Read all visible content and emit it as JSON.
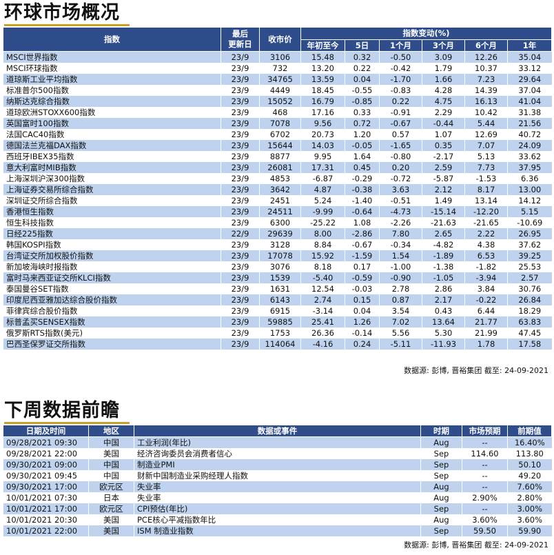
{
  "section1": {
    "title": "环球市场概况",
    "headers": {
      "index": "指数",
      "last_update": "最后\n更新日",
      "close": "收市价",
      "change_group": "指数变动(%)",
      "ytd": "年初至今",
      "d5": "5日",
      "m1": "1个月",
      "m3": "3个月",
      "m6": "6个月",
      "y1": "1年"
    },
    "rows": [
      {
        "name": "MSCI世界指数",
        "date": "23/9",
        "close": "3106",
        "ytd": "15.48",
        "d5": "0.32",
        "m1": "-0.50",
        "m3": "3.09",
        "m6": "12.26",
        "y1": "35.04"
      },
      {
        "name": "MSCI环球指数",
        "date": "23/9",
        "close": "732",
        "ytd": "13.20",
        "d5": "0.22",
        "m1": "-0.42",
        "m3": "1.79",
        "m6": "10.37",
        "y1": "33.12"
      },
      {
        "name": "道琼斯工业平均指数",
        "date": "23/9",
        "close": "34765",
        "ytd": "13.59",
        "d5": "0.04",
        "m1": "-1.70",
        "m3": "1.66",
        "m6": "7.23",
        "y1": "29.64"
      },
      {
        "name": "标准普尔500指数",
        "date": "23/9",
        "close": "4449",
        "ytd": "18.45",
        "d5": "-0.55",
        "m1": "-0.83",
        "m3": "4.28",
        "m6": "14.39",
        "y1": "37.04"
      },
      {
        "name": "纳斯达克综合指数",
        "date": "23/9",
        "close": "15052",
        "ytd": "16.79",
        "d5": "-0.85",
        "m1": "0.22",
        "m3": "4.75",
        "m6": "16.13",
        "y1": "41.04"
      },
      {
        "name": "道琼欧洲STOXX600指数",
        "date": "23/9",
        "close": "468",
        "ytd": "17.16",
        "d5": "0.33",
        "m1": "-0.91",
        "m3": "2.29",
        "m6": "10.42",
        "y1": "31.38"
      },
      {
        "name": "英国富时100指数",
        "date": "23/9",
        "close": "7078",
        "ytd": "9.56",
        "d5": "0.72",
        "m1": "-0.67",
        "m3": "-0.44",
        "m6": "5.44",
        "y1": "21.56"
      },
      {
        "name": "法国CAC40指数",
        "date": "23/9",
        "close": "6702",
        "ytd": "20.73",
        "d5": "1.20",
        "m1": "0.57",
        "m3": "1.07",
        "m6": "12.69",
        "y1": "40.72"
      },
      {
        "name": "德国法兰克福DAX指数",
        "date": "23/9",
        "close": "15644",
        "ytd": "14.03",
        "d5": "-0.05",
        "m1": "-1.65",
        "m3": "0.35",
        "m6": "7.07",
        "y1": "24.09"
      },
      {
        "name": "西班牙IBEX35指数",
        "date": "23/9",
        "close": "8877",
        "ytd": "9.95",
        "d5": "1.64",
        "m1": "-0.80",
        "m3": "-2.17",
        "m6": "5.13",
        "y1": "33.62"
      },
      {
        "name": "意大利富时MIB指数",
        "date": "23/9",
        "close": "26081",
        "ytd": "17.31",
        "d5": "0.45",
        "m1": "0.20",
        "m3": "2.59",
        "m6": "7.73",
        "y1": "37.95"
      },
      {
        "name": "上海深圳沪深300指数",
        "date": "23/9",
        "close": "4853",
        "ytd": "-6.87",
        "d5": "-0.29",
        "m1": "-0.72",
        "m3": "-5.87",
        "m6": "-1.53",
        "y1": "6.36"
      },
      {
        "name": "上海证券交易所综合指数",
        "date": "23/9",
        "close": "3642",
        "ytd": "4.87",
        "d5": "-0.38",
        "m1": "3.63",
        "m3": "2.12",
        "m6": "8.17",
        "y1": "13.00"
      },
      {
        "name": "深圳证交所综合指数",
        "date": "23/9",
        "close": "2451",
        "ytd": "5.24",
        "d5": "-1.40",
        "m1": "-0.51",
        "m3": "1.49",
        "m6": "13.14",
        "y1": "14.12"
      },
      {
        "name": "香港恒生指数",
        "date": "23/9",
        "close": "24511",
        "ytd": "-9.99",
        "d5": "-0.64",
        "m1": "-4.73",
        "m3": "-15.14",
        "m6": "-12.20",
        "y1": "5.15"
      },
      {
        "name": "恒生科技指数",
        "date": "23/9",
        "close": "6300",
        "ytd": "-25.22",
        "d5": "1.08",
        "m1": "-2.26",
        "m3": "-21.63",
        "m6": "-21.65",
        "y1": "-10.69"
      },
      {
        "name": "日经225指数",
        "date": "22/9",
        "close": "29639",
        "ytd": "8.00",
        "d5": "-2.86",
        "m1": "7.80",
        "m3": "2.65",
        "m6": "2.22",
        "y1": "26.95"
      },
      {
        "name": "韩国KOSPI指数",
        "date": "23/9",
        "close": "3128",
        "ytd": "8.84",
        "d5": "-0.67",
        "m1": "-0.34",
        "m3": "-4.82",
        "m6": "4.38",
        "y1": "37.62"
      },
      {
        "name": "台湾证交所加权股价指数",
        "date": "23/9",
        "close": "17078",
        "ytd": "15.92",
        "d5": "-1.59",
        "m1": "1.54",
        "m3": "-1.89",
        "m6": "6.53",
        "y1": "39.25"
      },
      {
        "name": "新加坡海峡时报指数",
        "date": "23/9",
        "close": "3076",
        "ytd": "8.18",
        "d5": "0.17",
        "m1": "-1.00",
        "m3": "-1.38",
        "m6": "-1.82",
        "y1": "25.53"
      },
      {
        "name": "富时马来西亚证交所KLCI指数",
        "date": "23/9",
        "close": "1539",
        "ytd": "-5.40",
        "d5": "-0.59",
        "m1": "-0.90",
        "m3": "-1.05",
        "m6": "-3.94",
        "y1": "2.57"
      },
      {
        "name": "泰国曼谷SET指数",
        "date": "23/9",
        "close": "1631",
        "ytd": "12.54",
        "d5": "-0.03",
        "m1": "2.78",
        "m3": "2.86",
        "m6": "3.84",
        "y1": "30.76"
      },
      {
        "name": "印度尼西亚雅加达综合股价指数",
        "date": "23/9",
        "close": "6143",
        "ytd": "2.74",
        "d5": "0.15",
        "m1": "0.87",
        "m3": "2.17",
        "m6": "-0.22",
        "y1": "26.84"
      },
      {
        "name": "菲律宾综合股价指数",
        "date": "23/9",
        "close": "6915",
        "ytd": "-3.14",
        "d5": "0.04",
        "m1": "3.54",
        "m3": "0.43",
        "m6": "6.44",
        "y1": "18.29"
      },
      {
        "name": "标普孟买SENSEX指数",
        "date": "23/9",
        "close": "59885",
        "ytd": "25.41",
        "d5": "1.26",
        "m1": "7.02",
        "m3": "13.64",
        "m6": "21.77",
        "y1": "63.83"
      },
      {
        "name": "俄罗斯RTS指数(美元)",
        "date": "23/9",
        "close": "1753",
        "ytd": "26.36",
        "d5": "-0.14",
        "m1": "5.56",
        "m3": "5.30",
        "m6": "21.99",
        "y1": "47.45"
      },
      {
        "name": "巴西圣保罗证交所指数",
        "date": "23/9",
        "close": "114064",
        "ytd": "-4.16",
        "d5": "0.24",
        "m1": "-5.11",
        "m3": "-11.93",
        "m6": "1.78",
        "y1": "17.58"
      }
    ],
    "source": "数据源: 彭博, 晋裕集团 截至: 24-09-2021"
  },
  "section2": {
    "title": "下周数据前瞻",
    "headers": {
      "datetime": "日期及时间",
      "region": "地区",
      "event": "数据或事件",
      "period": "时期",
      "forecast": "市场预期",
      "previous": "前期值"
    },
    "rows": [
      {
        "datetime": "09/28/2021 09:30",
        "region": "中国",
        "event": "工业利润(年比)",
        "period": "Aug",
        "forecast": "--",
        "previous": "16.40%"
      },
      {
        "datetime": "09/28/2021 22:00",
        "region": "美国",
        "event": "经济咨询委员会消费者信心",
        "period": "Sep",
        "forecast": "114.60",
        "previous": "113.80"
      },
      {
        "datetime": "09/30/2021 09:00",
        "region": "中国",
        "event": "制造业PMI",
        "period": "Sep",
        "forecast": "--",
        "previous": "50.10"
      },
      {
        "datetime": "09/30/2021 09:45",
        "region": "中国",
        "event": "财新中国制造业采购经理人指数",
        "period": "Sep",
        "forecast": "--",
        "previous": "49.20"
      },
      {
        "datetime": "09/30/2021 17:00",
        "region": "欧元区",
        "event": "失业率",
        "period": "Aug",
        "forecast": "--",
        "previous": "7.60%"
      },
      {
        "datetime": "10/01/2021 07:30",
        "region": "日本",
        "event": "失业率",
        "period": "Aug",
        "forecast": "2.90%",
        "previous": "2.80%"
      },
      {
        "datetime": "10/01/2021 17:00",
        "region": "欧元区",
        "event": "CPI预估(年比)",
        "period": "Sep",
        "forecast": "--",
        "previous": "3.00%"
      },
      {
        "datetime": "10/01/2021 20:30",
        "region": "美国",
        "event": "PCE核心平减指数年比",
        "period": "Aug",
        "forecast": "3.60%",
        "previous": "3.60%"
      },
      {
        "datetime": "10/01/2021 22:00",
        "region": "美国",
        "event": "ISM 制造业指数",
        "period": "Sep",
        "forecast": "59.50",
        "previous": "59.90"
      }
    ],
    "source": "数据源: 彭博, 晋裕集团 截至: 24-09-2021"
  },
  "colors": {
    "header_bg": "#2f4d8a",
    "stripe": "#bfd3ee",
    "accent": "#c9a227"
  }
}
